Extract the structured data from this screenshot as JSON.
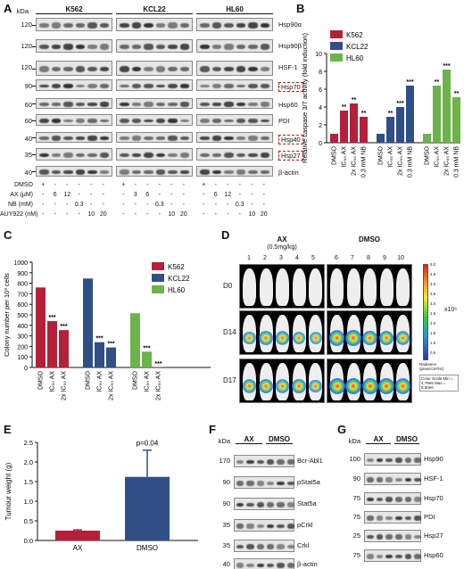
{
  "panel_labels": [
    "A",
    "B",
    "C",
    "D",
    "E",
    "F",
    "G"
  ],
  "panelA": {
    "kda_header": "kDa",
    "cell_lines": [
      "K562",
      "KCL22",
      "HL60"
    ],
    "proteins": [
      {
        "kda": "120",
        "name": "Hsp90α"
      },
      {
        "kda": "120",
        "name": "Hsp90β"
      },
      {
        "kda": "120",
        "name": "HSF-1"
      },
      {
        "kda": "90",
        "name": "Hsp70",
        "boxed": true
      },
      {
        "kda": "60",
        "name": "Hsp60"
      },
      {
        "kda": "60",
        "name": "PDI"
      },
      {
        "kda": "40",
        "name": "Hsp40",
        "boxed": true
      },
      {
        "kda": "35",
        "name": "Hsp27",
        "boxed": true
      },
      {
        "kda": "40",
        "name": "β-actin"
      }
    ],
    "treatment_rows": [
      {
        "label": "DMSO",
        "values": [
          "+",
          "-",
          "-",
          "-",
          "-",
          "-",
          "+",
          "-",
          "-",
          "-",
          "-",
          "-",
          "+",
          "-",
          "-",
          "-",
          "-",
          "-"
        ]
      },
      {
        "label": "AX (μM)",
        "values": [
          "-",
          "6",
          "12",
          "-",
          "-",
          "-",
          "-",
          "3",
          "6",
          "-",
          "-",
          "-",
          "-",
          "6",
          "12",
          "-",
          "-",
          "-"
        ]
      },
      {
        "label": "NB (mM)",
        "values": [
          "-",
          "-",
          "-",
          "0.3",
          "-",
          "-",
          "-",
          "-",
          "-",
          "0.3",
          "-",
          "-",
          "-",
          "-",
          "-",
          "0.3",
          "-",
          "-"
        ]
      },
      {
        "label": "AUY922 (nM)",
        "values": [
          "-",
          "-",
          "-",
          "-",
          "10",
          "20",
          "-",
          "-",
          "-",
          "-",
          "10",
          "20",
          "-",
          "-",
          "-",
          "-",
          "10",
          "20"
        ]
      }
    ]
  },
  "chart_data": [
    {
      "panel": "B",
      "type": "bar",
      "ylabel": "Relative caspase 3/7 activity (fold induction)",
      "ylim": [
        0,
        10
      ],
      "yticks": [
        0,
        2,
        4,
        6,
        8,
        10
      ],
      "categories": [
        "DMSO",
        "IC50 AX",
        "2x IC50 AX",
        "0.3 mM NB"
      ],
      "series": [
        {
          "name": "K562",
          "color": "#b4203a",
          "values": [
            1.0,
            3.6,
            4.4,
            2.9
          ],
          "sig": [
            "",
            "**",
            "**",
            "**"
          ]
        },
        {
          "name": "KCL22",
          "color": "#2f4f86",
          "values": [
            1.0,
            2.9,
            4.0,
            6.4
          ],
          "sig": [
            "",
            "**",
            "***",
            "***"
          ]
        },
        {
          "name": "HL60",
          "color": "#6bb34a",
          "values": [
            1.0,
            6.4,
            8.2,
            5.1
          ],
          "sig": [
            "",
            "**",
            "***",
            "**"
          ]
        }
      ]
    },
    {
      "panel": "C",
      "type": "bar",
      "ylabel": "Colony number per 10³ cells",
      "ylim": [
        0,
        1000
      ],
      "yticks": [
        0,
        100,
        200,
        300,
        400,
        500,
        600,
        700,
        800,
        900,
        1000
      ],
      "categories": [
        "DMSO",
        "IC50 AX",
        "2x IC50 AX"
      ],
      "series": [
        {
          "name": "K562",
          "color": "#b4203a",
          "values": [
            760,
            440,
            355
          ],
          "sig": [
            "",
            "***",
            "***"
          ]
        },
        {
          "name": "KCL22",
          "color": "#2f4f86",
          "values": [
            845,
            240,
            190
          ],
          "sig": [
            "",
            "***",
            "***"
          ]
        },
        {
          "name": "HL60",
          "color": "#6bb34a",
          "values": [
            515,
            150,
            2
          ],
          "sig": [
            "",
            "***",
            "***"
          ]
        }
      ]
    },
    {
      "panel": "E",
      "type": "bar",
      "ylabel": "Tumour weight (g)",
      "ylim": [
        0,
        2.5
      ],
      "yticks": [
        "0.0",
        "0.5",
        "1.0",
        "1.5",
        "2.0",
        "2.5"
      ],
      "categories": [
        "AX",
        "DMSO"
      ],
      "series": [
        {
          "name": "",
          "values": [
            0.25,
            1.62
          ],
          "errors": [
            0.02,
            0.68
          ],
          "colors": [
            "#b4203a",
            "#2f4f86"
          ]
        }
      ],
      "annotation": "p=0.04"
    }
  ],
  "panelD": {
    "groups": [
      {
        "title": "AX",
        "subtitle": "(0.5mg/kg)",
        "mice": [
          "1",
          "2",
          "3",
          "4",
          "5"
        ]
      },
      {
        "title": "DMSO",
        "subtitle": "",
        "mice": [
          "6",
          "7",
          "8",
          "9",
          "10"
        ]
      }
    ],
    "days": [
      "D0",
      "D14",
      "D17"
    ],
    "scale_label": "x10⁶",
    "scale_ticks": [
      "5.0",
      "4.5",
      "4.0",
      "3.5",
      "3.0",
      "2.5",
      "2.0",
      "1.5",
      "1.0",
      "0.5"
    ],
    "scale_caption": "Radiance (p/sec/cm²/sr)",
    "color_scale_text": "Color Scale Min = 4.79e5 Max = 5.30e6"
  },
  "panelF": {
    "kda_header": "kDa",
    "groups": [
      "AX",
      "DMSO"
    ],
    "proteins": [
      {
        "kda": "170",
        "name": "Bcr-Abl1"
      },
      {
        "kda": "90",
        "name": "pStat5a"
      },
      {
        "kda": "90",
        "name": "Stat5a"
      },
      {
        "kda": "35",
        "name": "pCrkl"
      },
      {
        "kda": "35",
        "name": "Crkl"
      },
      {
        "kda": "40",
        "name": "β-actin"
      }
    ]
  },
  "panelG": {
    "kda_header": "kDa",
    "groups": [
      "AX",
      "DMSO"
    ],
    "proteins": [
      {
        "kda": "100",
        "name": "Hsp90"
      },
      {
        "kda": "90",
        "name": "HSF-1"
      },
      {
        "kda": "75",
        "name": "Hsp70"
      },
      {
        "kda": "75",
        "name": "PDI"
      },
      {
        "kda": "25",
        "name": "Hsp27"
      },
      {
        "kda": "75",
        "name": "Hsp60"
      }
    ]
  }
}
